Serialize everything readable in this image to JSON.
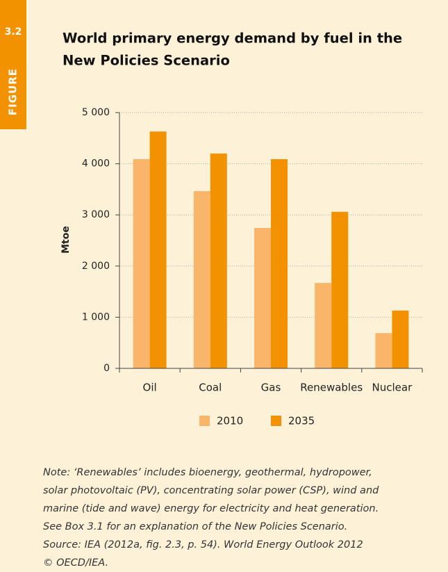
{
  "figure_number": "3.2",
  "figure_label": "FIGURE",
  "chart_data": {
    "type": "bar",
    "title": [
      "World primary energy demand by fuel in the",
      "New Policies Scenario"
    ],
    "ylabel": "Mtoe",
    "categories": [
      "Oil",
      "Coal",
      "Gas",
      "Renewables",
      "Nuclear"
    ],
    "series": [
      {
        "name": "2010",
        "color": "#f9b66b",
        "values": [
          4090,
          3465,
          2745,
          1670,
          690
        ]
      },
      {
        "name": "2035",
        "color": "#f39200",
        "values": [
          4630,
          4200,
          4090,
          3060,
          1130
        ]
      }
    ],
    "ylim": [
      0,
      5000
    ],
    "yticks": [
      0,
      {
        "value": 1000,
        "label": "1 000"
      },
      {
        "value": 2000,
        "label": "2 000"
      },
      {
        "value": 3000,
        "label": "3 000"
      },
      {
        "value": 4000,
        "label": "4 000"
      },
      {
        "value": 5000,
        "label": "5 000"
      }
    ],
    "grid": true,
    "legend": "bottom",
    "notes": [
      "Note: ‘Renewables’ includes bioenergy, geothermal, hydropower,",
      "solar photovoltaic (PV), concentrating solar power (CSP), wind and",
      "marine (tide and wave) energy for electricity and heat generation.",
      "See Box 3.1 for an explanation of the New Policies Scenario.",
      "Source: IEA (2012a, fig. 2.3, p. 54). World Energy Outlook 2012",
      "© OECD/IEA."
    ]
  }
}
